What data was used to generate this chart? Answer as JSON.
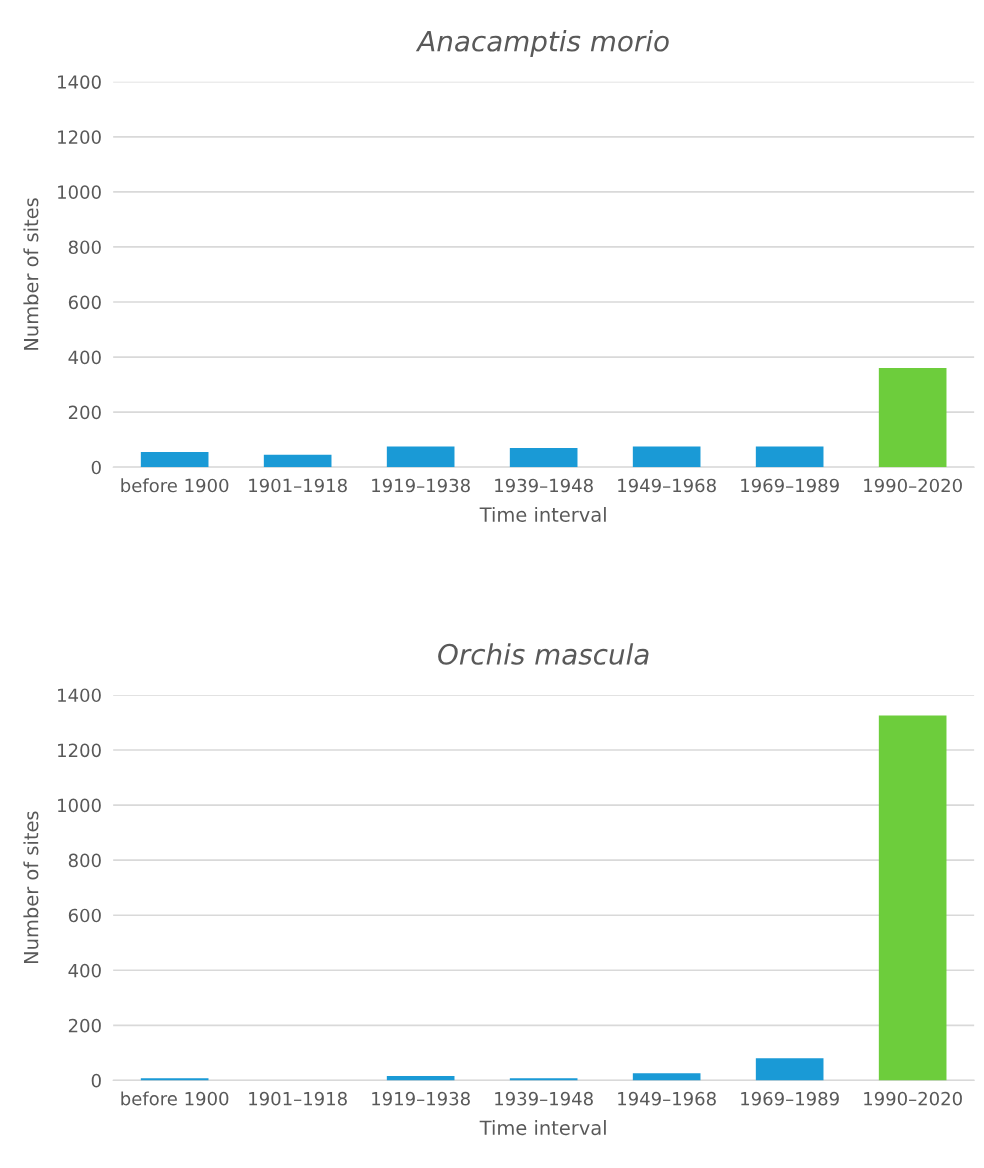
{
  "chart_data": [
    {
      "type": "bar",
      "title": "Anacamptis morio",
      "xlabel": "Time interval",
      "ylabel": "Number of sites",
      "categories": [
        "before 1900",
        "1901–1918",
        "1919–1938",
        "1939–1948",
        "1949–1968",
        "1969–1989",
        "1990–2020"
      ],
      "values": [
        55,
        45,
        75,
        70,
        75,
        75,
        360
      ],
      "colors": [
        "#1a9ad6",
        "#1a9ad6",
        "#1a9ad6",
        "#1a9ad6",
        "#1a9ad6",
        "#1a9ad6",
        "#6dcd3c"
      ],
      "ylim": [
        0,
        1400
      ],
      "yticks": [
        0,
        200,
        400,
        600,
        800,
        1000,
        1200,
        1400
      ],
      "grid": "y"
    },
    {
      "type": "bar",
      "title": "Orchis mascula",
      "xlabel": "Time interval",
      "ylabel": "Number of sites",
      "categories": [
        "before 1900",
        "1901–1918",
        "1919–1938",
        "1939–1948",
        "1949–1968",
        "1969–1989",
        "1990–2020"
      ],
      "values": [
        8,
        0,
        16,
        8,
        26,
        80,
        1325
      ],
      "colors": [
        "#1a9ad6",
        "#1a9ad6",
        "#1a9ad6",
        "#1a9ad6",
        "#1a9ad6",
        "#1a9ad6",
        "#6dcd3c"
      ],
      "ylim": [
        0,
        1400
      ],
      "yticks": [
        0,
        200,
        400,
        600,
        800,
        1000,
        1200,
        1400
      ],
      "grid": "y"
    }
  ]
}
